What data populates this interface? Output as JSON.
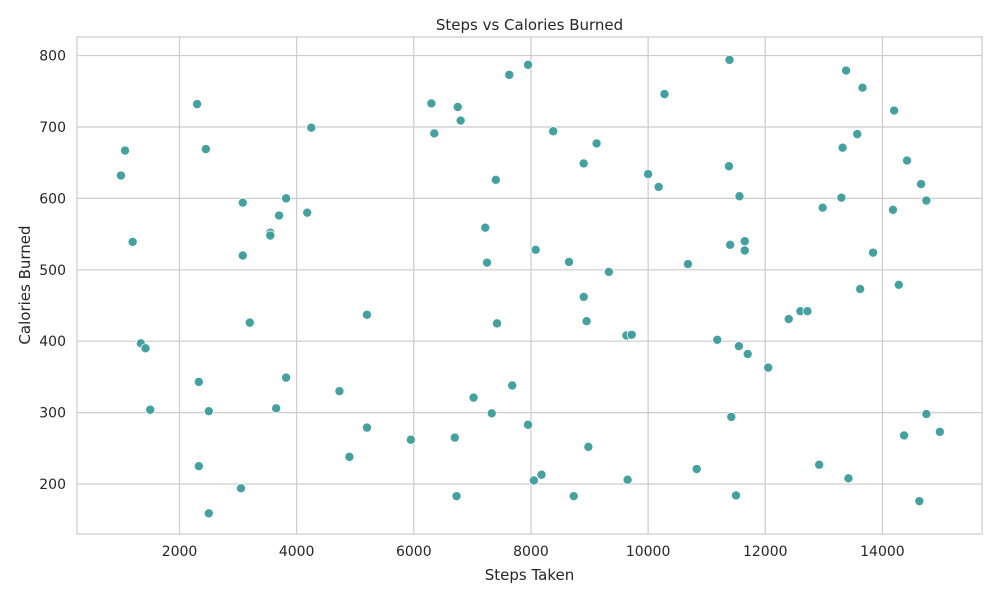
{
  "chart_data": {
    "type": "scatter",
    "title": "Steps vs Calories Burned",
    "xlabel": "Steps Taken",
    "ylabel": "Calories Burned",
    "xlim": [
      250,
      15700
    ],
    "ylim": [
      130,
      826
    ],
    "xticks": [
      2000,
      4000,
      6000,
      8000,
      10000,
      12000,
      14000
    ],
    "yticks": [
      200,
      300,
      400,
      500,
      600,
      700,
      800
    ],
    "grid": true,
    "colors": {
      "marker": "#3a9c9b",
      "marker_edge": "#ffffff",
      "grid": "#cccccc"
    },
    "points": [
      {
        "x": 1000,
        "y": 632
      },
      {
        "x": 1070,
        "y": 667
      },
      {
        "x": 1200,
        "y": 539
      },
      {
        "x": 1340,
        "y": 397
      },
      {
        "x": 1420,
        "y": 390
      },
      {
        "x": 1500,
        "y": 304
      },
      {
        "x": 2300,
        "y": 732
      },
      {
        "x": 2330,
        "y": 343
      },
      {
        "x": 2330,
        "y": 225
      },
      {
        "x": 2450,
        "y": 669
      },
      {
        "x": 2500,
        "y": 302
      },
      {
        "x": 2500,
        "y": 159
      },
      {
        "x": 3050,
        "y": 194
      },
      {
        "x": 3080,
        "y": 594
      },
      {
        "x": 3080,
        "y": 520
      },
      {
        "x": 3200,
        "y": 426
      },
      {
        "x": 3550,
        "y": 552
      },
      {
        "x": 3550,
        "y": 548
      },
      {
        "x": 3650,
        "y": 306
      },
      {
        "x": 3700,
        "y": 576
      },
      {
        "x": 3820,
        "y": 600
      },
      {
        "x": 3820,
        "y": 349
      },
      {
        "x": 4180,
        "y": 580
      },
      {
        "x": 4250,
        "y": 699
      },
      {
        "x": 4730,
        "y": 330
      },
      {
        "x": 4900,
        "y": 238
      },
      {
        "x": 5200,
        "y": 437
      },
      {
        "x": 5200,
        "y": 279
      },
      {
        "x": 5950,
        "y": 262
      },
      {
        "x": 6300,
        "y": 733
      },
      {
        "x": 6350,
        "y": 691
      },
      {
        "x": 6700,
        "y": 265
      },
      {
        "x": 6730,
        "y": 183
      },
      {
        "x": 6750,
        "y": 728
      },
      {
        "x": 6800,
        "y": 709
      },
      {
        "x": 7020,
        "y": 321
      },
      {
        "x": 7220,
        "y": 559
      },
      {
        "x": 7250,
        "y": 510
      },
      {
        "x": 7330,
        "y": 299
      },
      {
        "x": 7400,
        "y": 626
      },
      {
        "x": 7420,
        "y": 425
      },
      {
        "x": 7630,
        "y": 773
      },
      {
        "x": 7680,
        "y": 338
      },
      {
        "x": 7950,
        "y": 787
      },
      {
        "x": 7950,
        "y": 283
      },
      {
        "x": 8050,
        "y": 205
      },
      {
        "x": 8080,
        "y": 528
      },
      {
        "x": 8180,
        "y": 213
      },
      {
        "x": 8380,
        "y": 694
      },
      {
        "x": 8650,
        "y": 511
      },
      {
        "x": 8730,
        "y": 183
      },
      {
        "x": 8900,
        "y": 649
      },
      {
        "x": 8900,
        "y": 462
      },
      {
        "x": 8950,
        "y": 428
      },
      {
        "x": 8980,
        "y": 252
      },
      {
        "x": 9120,
        "y": 677
      },
      {
        "x": 9330,
        "y": 497
      },
      {
        "x": 9630,
        "y": 408
      },
      {
        "x": 9650,
        "y": 206
      },
      {
        "x": 9720,
        "y": 409
      },
      {
        "x": 10000,
        "y": 634
      },
      {
        "x": 10180,
        "y": 616
      },
      {
        "x": 10280,
        "y": 746
      },
      {
        "x": 10680,
        "y": 508
      },
      {
        "x": 10830,
        "y": 221
      },
      {
        "x": 11180,
        "y": 402
      },
      {
        "x": 11380,
        "y": 645
      },
      {
        "x": 11390,
        "y": 794
      },
      {
        "x": 11400,
        "y": 535
      },
      {
        "x": 11420,
        "y": 294
      },
      {
        "x": 11500,
        "y": 184
      },
      {
        "x": 11550,
        "y": 393
      },
      {
        "x": 11560,
        "y": 603
      },
      {
        "x": 11650,
        "y": 540
      },
      {
        "x": 11650,
        "y": 527
      },
      {
        "x": 11700,
        "y": 382
      },
      {
        "x": 12050,
        "y": 363
      },
      {
        "x": 12400,
        "y": 431
      },
      {
        "x": 12600,
        "y": 442
      },
      {
        "x": 12720,
        "y": 442
      },
      {
        "x": 12920,
        "y": 227
      },
      {
        "x": 12980,
        "y": 587
      },
      {
        "x": 13300,
        "y": 601
      },
      {
        "x": 13320,
        "y": 671
      },
      {
        "x": 13380,
        "y": 779
      },
      {
        "x": 13420,
        "y": 208
      },
      {
        "x": 13570,
        "y": 690
      },
      {
        "x": 13620,
        "y": 473
      },
      {
        "x": 13660,
        "y": 755
      },
      {
        "x": 13840,
        "y": 524
      },
      {
        "x": 14180,
        "y": 584
      },
      {
        "x": 14200,
        "y": 723
      },
      {
        "x": 14280,
        "y": 479
      },
      {
        "x": 14370,
        "y": 268
      },
      {
        "x": 14420,
        "y": 653
      },
      {
        "x": 14630,
        "y": 176
      },
      {
        "x": 14660,
        "y": 620
      },
      {
        "x": 14750,
        "y": 298
      },
      {
        "x": 14750,
        "y": 597
      },
      {
        "x": 14980,
        "y": 273
      }
    ]
  }
}
